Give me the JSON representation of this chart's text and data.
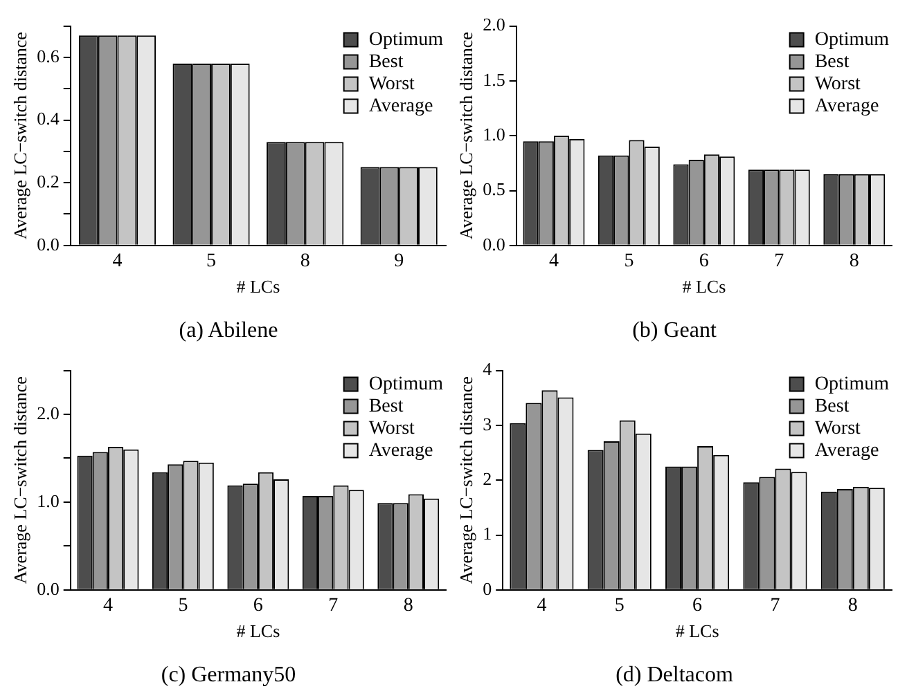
{
  "chart_data": [
    {
      "type": "bar",
      "title": "(a) Abilene",
      "xlabel": "# LCs",
      "ylabel": "Average LC−switch distance",
      "categories": [
        "4",
        "5",
        "8",
        "9"
      ],
      "ylim": [
        0,
        0.7
      ],
      "yticks": [
        {
          "value": 0,
          "label": "0.0"
        },
        {
          "value": 0.1,
          "label": null
        },
        0.2,
        {
          "value": 0.3,
          "label": null
        },
        0.4,
        {
          "value": 0.5,
          "label": null
        },
        0.6,
        {
          "value": 0.7,
          "label": null
        }
      ],
      "grid": false,
      "legend": "top right",
      "series": [
        {
          "name": "Optimum",
          "color": "#4d4d4d",
          "values": [
            0.67,
            0.58,
            0.33,
            0.25
          ]
        },
        {
          "name": "Best",
          "color": "#969696",
          "values": [
            0.67,
            0.58,
            0.33,
            0.25
          ]
        },
        {
          "name": "Worst",
          "color": "#c4c4c4",
          "values": [
            0.67,
            0.58,
            0.33,
            0.25
          ]
        },
        {
          "name": "Average",
          "color": "#e6e6e6",
          "values": [
            0.67,
            0.58,
            0.33,
            0.25
          ]
        }
      ]
    },
    {
      "type": "bar",
      "title": "(b) Geant",
      "xlabel": "# LCs",
      "ylabel": "Average LC−switch distance",
      "categories": [
        "4",
        "5",
        "6",
        "7",
        "8"
      ],
      "ylim": [
        0,
        2
      ],
      "yticks": [
        {
          "value": 0,
          "label": "0.0"
        },
        0.5,
        {
          "value": 1,
          "label": "1.0"
        },
        1.5,
        {
          "value": 2,
          "label": "2.0"
        }
      ],
      "grid": false,
      "legend": "top right",
      "series": [
        {
          "name": "Optimum",
          "color": "#4d4d4d",
          "values": [
            0.95,
            0.82,
            0.74,
            0.69,
            0.65
          ]
        },
        {
          "name": "Best",
          "color": "#969696",
          "values": [
            0.95,
            0.82,
            0.78,
            0.69,
            0.65
          ]
        },
        {
          "name": "Worst",
          "color": "#c4c4c4",
          "values": [
            1.0,
            0.96,
            0.83,
            0.69,
            0.65
          ]
        },
        {
          "name": "Average",
          "color": "#e6e6e6",
          "values": [
            0.97,
            0.9,
            0.81,
            0.69,
            0.65
          ]
        }
      ]
    },
    {
      "type": "bar",
      "title": "(c) Germany50",
      "xlabel": "# LCs",
      "ylabel": "Average LC−switch distance",
      "categories": [
        "4",
        "5",
        "6",
        "7",
        "8"
      ],
      "ylim": [
        0,
        2.5
      ],
      "yticks": [
        {
          "value": 0,
          "label": "0.0"
        },
        {
          "value": 0.5,
          "label": null
        },
        {
          "value": 1,
          "label": "1.0"
        },
        {
          "value": 1.5,
          "label": null
        },
        {
          "value": 2,
          "label": "2.0"
        },
        {
          "value": 2.5,
          "label": null
        }
      ],
      "grid": false,
      "legend": "top right",
      "series": [
        {
          "name": "Optimum",
          "color": "#4d4d4d",
          "values": [
            1.53,
            1.34,
            1.19,
            1.07,
            0.99
          ]
        },
        {
          "name": "Best",
          "color": "#969696",
          "values": [
            1.57,
            1.43,
            1.21,
            1.07,
            0.99
          ]
        },
        {
          "name": "Worst",
          "color": "#c4c4c4",
          "values": [
            1.63,
            1.47,
            1.34,
            1.19,
            1.09
          ]
        },
        {
          "name": "Average",
          "color": "#e6e6e6",
          "values": [
            1.6,
            1.45,
            1.26,
            1.14,
            1.04
          ]
        }
      ]
    },
    {
      "type": "bar",
      "title": "(d) Deltacom",
      "xlabel": "# LCs",
      "ylabel": "Average LC−switch distance",
      "categories": [
        "4",
        "5",
        "6",
        "7",
        "8"
      ],
      "ylim": [
        0,
        4
      ],
      "yticks": [
        0,
        1,
        2,
        3,
        4
      ],
      "grid": false,
      "legend": "top right",
      "series": [
        {
          "name": "Optimum",
          "color": "#4d4d4d",
          "values": [
            3.04,
            2.55,
            2.25,
            1.96,
            1.79
          ]
        },
        {
          "name": "Best",
          "color": "#969696",
          "values": [
            3.41,
            2.71,
            2.25,
            2.06,
            1.84
          ]
        },
        {
          "name": "Worst",
          "color": "#c4c4c4",
          "values": [
            3.64,
            3.09,
            2.62,
            2.21,
            1.88
          ]
        },
        {
          "name": "Average",
          "color": "#e6e6e6",
          "values": [
            3.51,
            2.85,
            2.46,
            2.15,
            1.86
          ]
        }
      ]
    }
  ]
}
